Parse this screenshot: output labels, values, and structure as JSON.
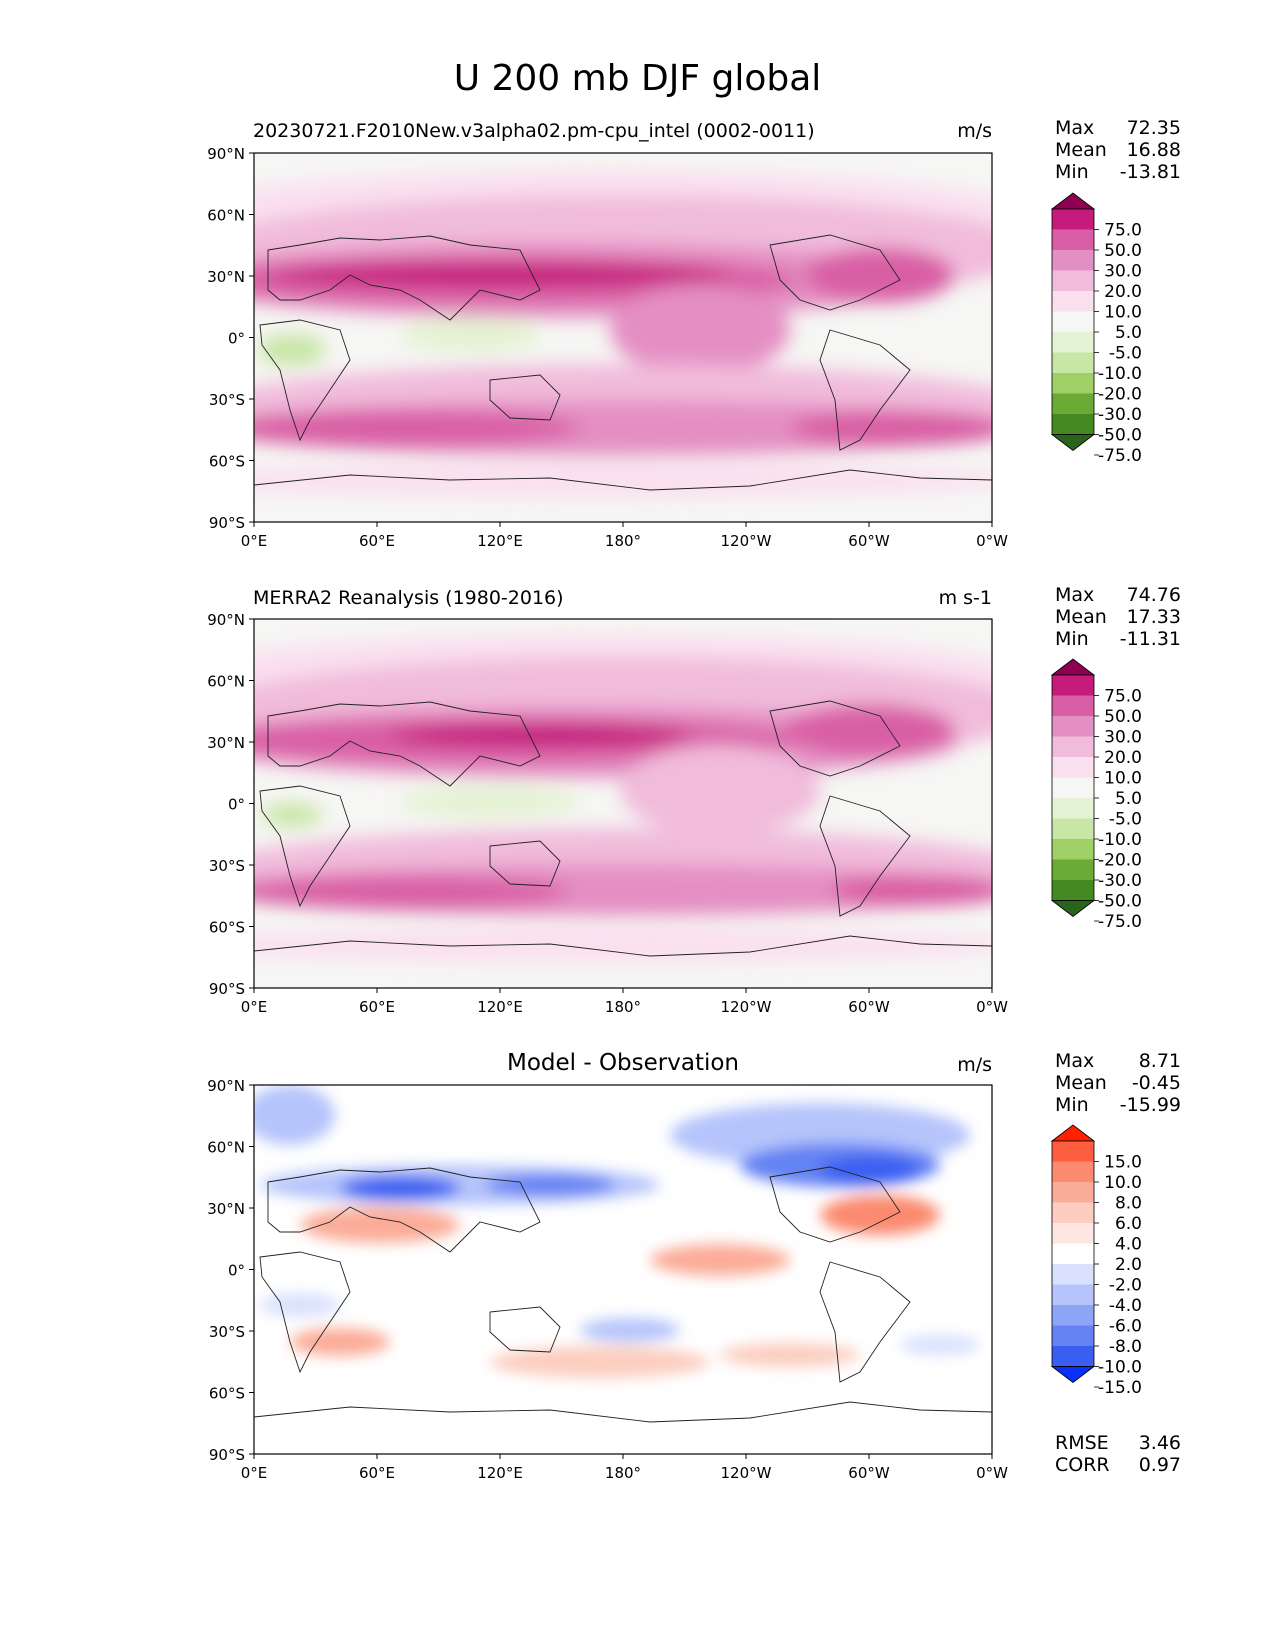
{
  "figure": {
    "title": "U 200 mb DJF global",
    "lat_ticks": [
      "90°N",
      "60°N",
      "30°N",
      "0°",
      "30°S",
      "60°S",
      "90°S"
    ],
    "lon_ticks": [
      "0°E",
      "60°E",
      "120°E",
      "180°",
      "120°W",
      "60°W",
      "0°W"
    ]
  },
  "panels": [
    {
      "title": "20230721.F2010New.v3alpha02.pm-cpu_intel (0002-0011)",
      "units": "m/s",
      "stats": {
        "max_label": "Max",
        "max": "72.35",
        "mean_label": "Mean",
        "mean": "16.88",
        "min_label": "Min",
        "min": "-13.81"
      },
      "colorbar": {
        "levels": [
          "75.0",
          "50.0",
          "30.0",
          "20.0",
          "10.0",
          "5.0",
          "-5.0",
          "-10.0",
          "-20.0",
          "-30.0",
          "-50.0",
          "-75.0"
        ],
        "colors": [
          "#8e0152",
          "#c51b7d",
          "#d95ea5",
          "#e48fc3",
          "#f1bcdc",
          "#fae0ef",
          "#f6f6f4",
          "#e4f3d3",
          "#c8e6a6",
          "#9ed066",
          "#6aaa35",
          "#448a22",
          "#2a641c"
        ]
      }
    },
    {
      "title": "MERRA2 Reanalysis (1980-2016)",
      "units": "m s-1",
      "stats": {
        "max_label": "Max",
        "max": "74.76",
        "mean_label": "Mean",
        "mean": "17.33",
        "min_label": "Min",
        "min": "-11.31"
      },
      "colorbar": {
        "levels": [
          "75.0",
          "50.0",
          "30.0",
          "20.0",
          "10.0",
          "5.0",
          "-5.0",
          "-10.0",
          "-20.0",
          "-30.0",
          "-50.0",
          "-75.0"
        ],
        "colors": [
          "#8e0152",
          "#c51b7d",
          "#d95ea5",
          "#e48fc3",
          "#f1bcdc",
          "#fae0ef",
          "#f6f6f4",
          "#e4f3d3",
          "#c8e6a6",
          "#9ed066",
          "#6aaa35",
          "#448a22",
          "#2a641c"
        ]
      }
    },
    {
      "title": "Model - Observation",
      "units": "m/s",
      "stats": {
        "max_label": "Max",
        "max": "8.71",
        "mean_label": "Mean",
        "mean": "-0.45",
        "min_label": "Min",
        "min": "-15.99"
      },
      "metrics": {
        "rmse_label": "RMSE",
        "rmse": "3.46",
        "corr_label": "CORR",
        "corr": "0.97"
      },
      "colorbar": {
        "levels": [
          "15.0",
          "10.0",
          "8.0",
          "6.0",
          "4.0",
          "2.0",
          "-2.0",
          "-4.0",
          "-6.0",
          "-8.0",
          "-10.0",
          "-15.0"
        ],
        "colors": [
          "#ff2200",
          "#fe5d40",
          "#fb8a70",
          "#fbac98",
          "#fccdc0",
          "#fde7e0",
          "#ffffff",
          "#d9e1fd",
          "#b5c4fb",
          "#8da5f7",
          "#6482f3",
          "#3a5ef1",
          "#0a30fb"
        ]
      }
    }
  ]
}
